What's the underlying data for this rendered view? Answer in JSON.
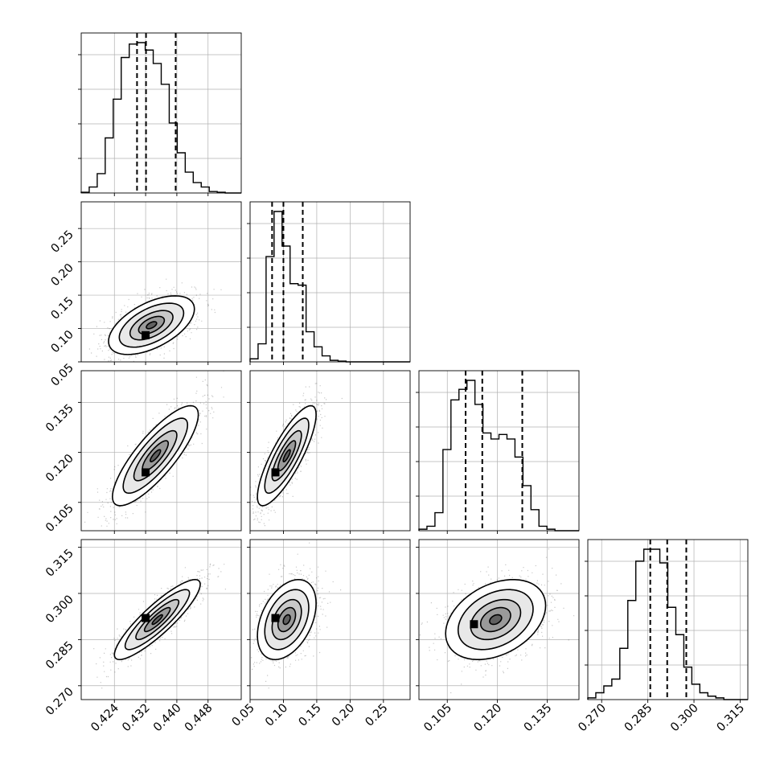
{
  "chart_data": {
    "type": "corner",
    "parameters": [
      {
        "name": "",
        "range": [
          0.4155,
          0.4565
        ],
        "ticks": [
          "0.424",
          "0.432",
          "0.440",
          "0.448"
        ],
        "tick_values": [
          0.424,
          0.432,
          0.44,
          0.448
        ],
        "quantiles": [
          0.4298,
          0.4321,
          0.4397
        ],
        "hist_edges_start": 0.4155,
        "hist_bin_width": 0.00205,
        "hist_counts": [
          0.5,
          4,
          13,
          37,
          63,
          91,
          100,
          101,
          96,
          87,
          73,
          47,
          27,
          14,
          7,
          4,
          1,
          0.5,
          0,
          0
        ]
      },
      {
        "name": "",
        "range": [
          0.05,
          0.29
        ],
        "ticks": [
          "0.05",
          "0.10",
          "0.15",
          "0.20",
          "0.25"
        ],
        "tick_values": [
          0.05,
          0.1,
          0.15,
          0.2,
          0.25
        ],
        "quantiles": [
          0.083,
          0.1,
          0.129
        ],
        "hist_edges_start": 0.05,
        "hist_bin_width": 0.012,
        "hist_counts": [
          2,
          12,
          70,
          100,
          77,
          52,
          51,
          20,
          10,
          4,
          1,
          0.5,
          0,
          0,
          0,
          0,
          0,
          0,
          0,
          0
        ]
      },
      {
        "name": "",
        "range": [
          0.0965,
          0.1445
        ],
        "ticks": [
          "0.105",
          "0.120",
          "0.135"
        ],
        "tick_values": [
          0.105,
          0.12,
          0.135
        ],
        "quantiles": [
          0.1105,
          0.1155,
          0.1275
        ],
        "hist_edges_start": 0.0965,
        "hist_bin_width": 0.0024,
        "hist_counts": [
          1,
          3,
          12,
          54,
          87,
          94,
          100,
          84,
          65,
          61,
          64,
          61,
          49,
          30,
          14,
          3,
          1,
          0,
          0,
          0
        ]
      },
      {
        "name": "",
        "range": [
          0.2655,
          0.3175
        ],
        "ticks": [
          "0.270",
          "0.285",
          "0.300",
          "0.315"
        ],
        "tick_values": [
          0.27,
          0.285,
          0.3,
          0.315
        ],
        "quantiles": [
          0.2858,
          0.2913,
          0.2975
        ],
        "hist_edges_start": 0.2655,
        "hist_bin_width": 0.0026,
        "hist_counts": [
          1,
          4,
          8,
          12,
          30,
          58,
          81,
          88,
          88,
          80,
          54,
          38,
          19,
          9,
          4,
          2,
          1,
          0,
          0,
          0
        ]
      }
    ],
    "panels_2d": [
      {
        "x": 0,
        "y": 1,
        "mean": [
          0.4335,
          0.105
        ],
        "sd": [
          0.0055,
          0.022
        ],
        "corr": 0.55,
        "mode": [
          0.432,
          0.09
        ]
      },
      {
        "x": 0,
        "y": 2,
        "mean": [
          0.4345,
          0.119
        ],
        "sd": [
          0.0055,
          0.0075
        ],
        "corr": 0.82,
        "mode": [
          0.432,
          0.114
        ]
      },
      {
        "x": 1,
        "y": 2,
        "mean": [
          0.105,
          0.119
        ],
        "sd": [
          0.022,
          0.0075
        ],
        "corr": 0.82,
        "mode": [
          0.088,
          0.114
        ]
      },
      {
        "x": 0,
        "y": 3,
        "mean": [
          0.435,
          0.2915
        ],
        "sd": [
          0.0055,
          0.0065
        ],
        "corr": 0.88,
        "mode": [
          0.432,
          0.292
        ]
      },
      {
        "x": 1,
        "y": 3,
        "mean": [
          0.105,
          0.2915
        ],
        "sd": [
          0.022,
          0.0065
        ],
        "corr": 0.4,
        "mode": [
          0.088,
          0.292
        ]
      },
      {
        "x": 2,
        "y": 3,
        "mean": [
          0.1195,
          0.2915
        ],
        "sd": [
          0.0075,
          0.0065
        ],
        "corr": 0.35,
        "mode": [
          0.113,
          0.29
        ]
      }
    ],
    "contour_levels": [
      0.5,
      1.0,
      1.5,
      2.0
    ],
    "quantile_style": "dashed",
    "grid": true,
    "colors": {
      "line": "#000000",
      "grid": "#b0b0b0",
      "fill_dark": "#000000",
      "fill_light": "#ffffff"
    }
  }
}
